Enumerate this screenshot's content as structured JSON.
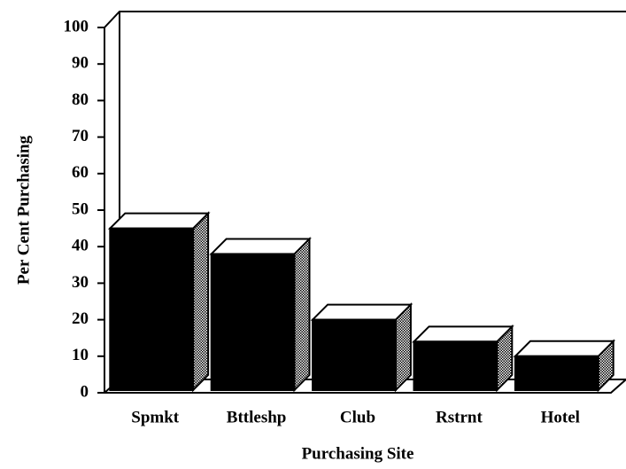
{
  "chart_data": {
    "type": "bar3d",
    "categories": [
      "Spmkt",
      "Bttleshp",
      "Club",
      "Rstrnt",
      "Hotel"
    ],
    "values": [
      45,
      38,
      20,
      14,
      10
    ],
    "color": "#000000",
    "xlabel": "Purchasing Site",
    "ylabel": "Per Cent Purchasing",
    "ylim": [
      0,
      100
    ],
    "yticks": [
      0,
      10,
      20,
      30,
      40,
      50,
      60,
      70,
      80,
      90,
      100
    ]
  }
}
